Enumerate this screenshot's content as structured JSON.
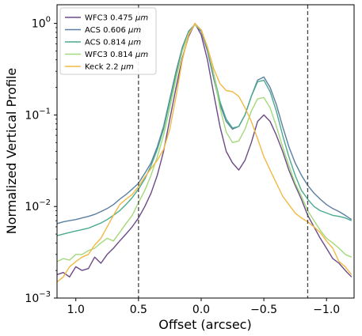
{
  "chart_data": {
    "type": "line",
    "xlabel": "Offset (arcsec)",
    "ylabel": "Normalized Vertical Profile",
    "x_reversed": true,
    "xlim": [
      1.15,
      -1.22
    ],
    "ylim": [
      0.001,
      1.6
    ],
    "y_scale": "log",
    "x_ticks": [
      {
        "value": 1.0,
        "label": "1.0"
      },
      {
        "value": 0.5,
        "label": "0.5"
      },
      {
        "value": 0.0,
        "label": "0.0"
      },
      {
        "value": -0.5,
        "label": "−0.5"
      },
      {
        "value": -1.0,
        "label": "−1.0"
      }
    ],
    "y_ticks": [
      {
        "value": 1,
        "label": "10",
        "exp": "0"
      },
      {
        "value": 0.1,
        "label": "10",
        "exp": "−1"
      },
      {
        "value": 0.01,
        "label": "10",
        "exp": "−2"
      },
      {
        "value": 0.001,
        "label": "10",
        "exp": "−3"
      }
    ],
    "vlines": [
      0.5,
      -0.85
    ],
    "legend_position": "upper-left",
    "grid": false,
    "series": [
      {
        "name": "WFC3 0.475",
        "unit": "μm",
        "color": "#6b4a85",
        "x": [
          1.15,
          1.1,
          1.05,
          1.0,
          0.95,
          0.9,
          0.85,
          0.8,
          0.75,
          0.7,
          0.65,
          0.6,
          0.55,
          0.5,
          0.45,
          0.4,
          0.35,
          0.3,
          0.25,
          0.2,
          0.15,
          0.1,
          0.05,
          0.0,
          -0.05,
          -0.1,
          -0.15,
          -0.2,
          -0.25,
          -0.3,
          -0.35,
          -0.4,
          -0.45,
          -0.5,
          -0.55,
          -0.6,
          -0.65,
          -0.7,
          -0.75,
          -0.8,
          -0.85,
          -0.9,
          -0.95,
          -1.0,
          -1.05,
          -1.1,
          -1.15,
          -1.2
        ],
        "y": [
          0.0018,
          0.0019,
          0.0017,
          0.0022,
          0.002,
          0.0021,
          0.0028,
          0.0024,
          0.003,
          0.0035,
          0.0042,
          0.005,
          0.006,
          0.0075,
          0.01,
          0.014,
          0.022,
          0.04,
          0.09,
          0.2,
          0.42,
          0.72,
          1.0,
          0.75,
          0.4,
          0.17,
          0.075,
          0.04,
          0.03,
          0.025,
          0.032,
          0.05,
          0.085,
          0.1,
          0.085,
          0.06,
          0.04,
          0.025,
          0.017,
          0.012,
          0.008,
          0.006,
          0.0045,
          0.0035,
          0.0027,
          0.0024,
          0.002,
          0.0017
        ]
      },
      {
        "name": "ACS 0.606",
        "unit": "μm",
        "color": "#5a7fa0",
        "x": [
          1.15,
          1.1,
          1.05,
          1.0,
          0.95,
          0.9,
          0.85,
          0.8,
          0.75,
          0.7,
          0.65,
          0.6,
          0.55,
          0.5,
          0.45,
          0.4,
          0.35,
          0.3,
          0.25,
          0.2,
          0.15,
          0.1,
          0.05,
          0.0,
          -0.05,
          -0.1,
          -0.15,
          -0.2,
          -0.25,
          -0.3,
          -0.35,
          -0.4,
          -0.45,
          -0.5,
          -0.55,
          -0.6,
          -0.65,
          -0.7,
          -0.75,
          -0.8,
          -0.85,
          -0.9,
          -0.95,
          -1.0,
          -1.05,
          -1.1,
          -1.15,
          -1.2
        ],
        "y": [
          0.0065,
          0.0068,
          0.007,
          0.0072,
          0.0075,
          0.0078,
          0.0082,
          0.0088,
          0.0095,
          0.0105,
          0.012,
          0.0135,
          0.0155,
          0.018,
          0.023,
          0.03,
          0.045,
          0.075,
          0.15,
          0.3,
          0.55,
          0.82,
          0.98,
          0.82,
          0.5,
          0.25,
          0.13,
          0.085,
          0.07,
          0.075,
          0.1,
          0.16,
          0.24,
          0.26,
          0.2,
          0.13,
          0.075,
          0.045,
          0.03,
          0.022,
          0.017,
          0.014,
          0.012,
          0.0105,
          0.0095,
          0.0088,
          0.008,
          0.0072
        ]
      },
      {
        "name": "ACS 0.814",
        "unit": "μm",
        "color": "#4aaa8f",
        "x": [
          1.15,
          1.1,
          1.05,
          1.0,
          0.95,
          0.9,
          0.85,
          0.8,
          0.75,
          0.7,
          0.65,
          0.6,
          0.55,
          0.5,
          0.45,
          0.4,
          0.35,
          0.3,
          0.25,
          0.2,
          0.15,
          0.1,
          0.05,
          0.0,
          -0.05,
          -0.1,
          -0.15,
          -0.2,
          -0.25,
          -0.3,
          -0.35,
          -0.4,
          -0.45,
          -0.5,
          -0.55,
          -0.6,
          -0.65,
          -0.7,
          -0.75,
          -0.8,
          -0.85,
          -0.9,
          -0.95,
          -1.0,
          -1.05,
          -1.1,
          -1.15,
          -1.2
        ],
        "y": [
          0.0048,
          0.005,
          0.0052,
          0.0054,
          0.0056,
          0.0058,
          0.0062,
          0.0066,
          0.0072,
          0.008,
          0.009,
          0.0105,
          0.0125,
          0.0155,
          0.02,
          0.028,
          0.042,
          0.07,
          0.14,
          0.28,
          0.52,
          0.8,
          0.97,
          0.85,
          0.55,
          0.28,
          0.14,
          0.09,
          0.072,
          0.075,
          0.1,
          0.16,
          0.23,
          0.24,
          0.18,
          0.11,
          0.06,
          0.035,
          0.022,
          0.015,
          0.012,
          0.01,
          0.009,
          0.0085,
          0.008,
          0.0078,
          0.0075,
          0.007
        ]
      },
      {
        "name": "WFC3 0.814",
        "unit": "μm",
        "color": "#a3d97a",
        "x": [
          1.15,
          1.1,
          1.05,
          1.0,
          0.95,
          0.9,
          0.85,
          0.8,
          0.75,
          0.7,
          0.65,
          0.6,
          0.55,
          0.5,
          0.45,
          0.4,
          0.35,
          0.3,
          0.25,
          0.2,
          0.15,
          0.1,
          0.05,
          0.0,
          -0.05,
          -0.1,
          -0.15,
          -0.2,
          -0.25,
          -0.3,
          -0.35,
          -0.4,
          -0.45,
          -0.5,
          -0.55,
          -0.6,
          -0.65,
          -0.7,
          -0.75,
          -0.8,
          -0.85,
          -0.9,
          -0.95,
          -1.0,
          -1.05,
          -1.1,
          -1.15,
          -1.2
        ],
        "y": [
          0.0025,
          0.0027,
          0.0026,
          0.003,
          0.003,
          0.0033,
          0.0035,
          0.004,
          0.0045,
          0.0042,
          0.0052,
          0.0065,
          0.008,
          0.011,
          0.015,
          0.022,
          0.035,
          0.06,
          0.12,
          0.25,
          0.5,
          0.78,
          0.98,
          0.85,
          0.55,
          0.28,
          0.12,
          0.065,
          0.05,
          0.052,
          0.07,
          0.11,
          0.15,
          0.155,
          0.12,
          0.075,
          0.045,
          0.028,
          0.018,
          0.013,
          0.009,
          0.007,
          0.0055,
          0.0045,
          0.004,
          0.0035,
          0.003,
          0.0028
        ]
      },
      {
        "name": "Keck 2.2",
        "unit": "μm",
        "color": "#f2b844",
        "x": [
          1.15,
          1.1,
          1.05,
          1.0,
          0.95,
          0.9,
          0.85,
          0.8,
          0.75,
          0.7,
          0.65,
          0.6,
          0.55,
          0.5,
          0.45,
          0.4,
          0.35,
          0.3,
          0.25,
          0.2,
          0.15,
          0.1,
          0.05,
          0.0,
          -0.05,
          -0.1,
          -0.15,
          -0.2,
          -0.25,
          -0.3,
          -0.35,
          -0.4,
          -0.45,
          -0.5,
          -0.55,
          -0.6,
          -0.65,
          -0.7,
          -0.75,
          -0.8,
          -0.85,
          -0.9,
          -0.95,
          -1.0,
          -1.05,
          -1.1,
          -1.15,
          -1.2
        ],
        "y": [
          0.0015,
          0.0017,
          0.0022,
          0.0025,
          0.0028,
          0.003,
          0.0038,
          0.0045,
          0.006,
          0.008,
          0.0105,
          0.012,
          0.0135,
          0.0165,
          0.021,
          0.026,
          0.032,
          0.042,
          0.07,
          0.16,
          0.4,
          0.75,
          1.0,
          0.85,
          0.55,
          0.32,
          0.22,
          0.185,
          0.18,
          0.16,
          0.12,
          0.085,
          0.055,
          0.035,
          0.025,
          0.018,
          0.013,
          0.0105,
          0.0085,
          0.0075,
          0.0068,
          0.006,
          0.0052,
          0.0042,
          0.0035,
          0.0025,
          0.0022,
          0.0018
        ]
      }
    ]
  }
}
